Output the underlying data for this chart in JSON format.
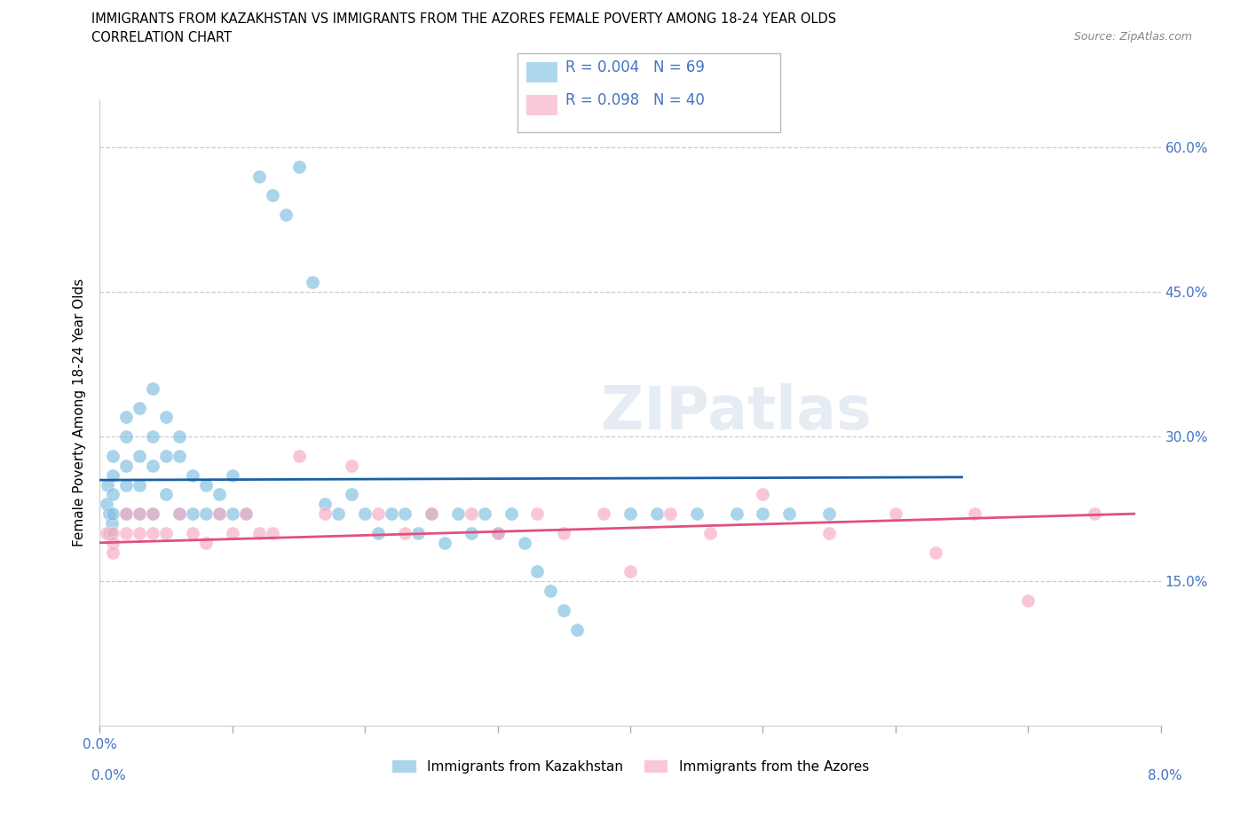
{
  "title_line1": "IMMIGRANTS FROM KAZAKHSTAN VS IMMIGRANTS FROM THE AZORES FEMALE POVERTY AMONG 18-24 YEAR OLDS",
  "title_line2": "CORRELATION CHART",
  "source": "Source: ZipAtlas.com",
  "ylabel": "Female Poverty Among 18-24 Year Olds",
  "xlim": [
    0.0,
    0.08
  ],
  "ylim": [
    0.0,
    0.65
  ],
  "xtick_positions": [
    0.0,
    0.01,
    0.02,
    0.03,
    0.04,
    0.05,
    0.06,
    0.07,
    0.08
  ],
  "xtick_labels_shown": {
    "0.0": "0.0%",
    "0.08": "8.0%"
  },
  "ytick_vals": [
    0.15,
    0.3,
    0.45,
    0.6
  ],
  "ytick_labels": [
    "15.0%",
    "30.0%",
    "45.0%",
    "60.0%"
  ],
  "kazakhstan_color": "#7bbde0",
  "azores_color": "#f7a8c0",
  "trend_kaz_color": "#1a5fa8",
  "trend_az_color": "#e05080",
  "watermark": "ZIPatlas",
  "legend_entries": [
    {
      "label": "R = 0.004   N = 69",
      "color": "#7bbde0"
    },
    {
      "label": "R = 0.098   N = 40",
      "color": "#f7a8c0"
    }
  ],
  "bottom_legend": [
    "Immigrants from Kazakhstan",
    "Immigrants from the Azores"
  ],
  "kaz_x": [
    0.0005,
    0.0006,
    0.0007,
    0.0008,
    0.0009,
    0.001,
    0.001,
    0.001,
    0.001,
    0.002,
    0.002,
    0.002,
    0.002,
    0.002,
    0.003,
    0.003,
    0.003,
    0.003,
    0.004,
    0.004,
    0.004,
    0.004,
    0.005,
    0.005,
    0.005,
    0.006,
    0.006,
    0.006,
    0.007,
    0.007,
    0.008,
    0.008,
    0.009,
    0.009,
    0.01,
    0.01,
    0.011,
    0.012,
    0.013,
    0.014,
    0.015,
    0.016,
    0.017,
    0.018,
    0.019,
    0.02,
    0.021,
    0.022,
    0.023,
    0.024,
    0.025,
    0.026,
    0.027,
    0.028,
    0.029,
    0.03,
    0.031,
    0.032,
    0.033,
    0.034,
    0.035,
    0.036,
    0.04,
    0.042,
    0.045,
    0.048,
    0.05,
    0.052,
    0.055
  ],
  "kaz_y": [
    0.23,
    0.25,
    0.22,
    0.2,
    0.21,
    0.26,
    0.24,
    0.28,
    0.22,
    0.3,
    0.27,
    0.25,
    0.32,
    0.22,
    0.33,
    0.28,
    0.25,
    0.22,
    0.35,
    0.3,
    0.27,
    0.22,
    0.32,
    0.28,
    0.24,
    0.3,
    0.28,
    0.22,
    0.26,
    0.22,
    0.25,
    0.22,
    0.24,
    0.22,
    0.26,
    0.22,
    0.22,
    0.57,
    0.55,
    0.53,
    0.58,
    0.46,
    0.23,
    0.22,
    0.24,
    0.22,
    0.2,
    0.22,
    0.22,
    0.2,
    0.22,
    0.19,
    0.22,
    0.2,
    0.22,
    0.2,
    0.22,
    0.19,
    0.16,
    0.14,
    0.12,
    0.1,
    0.22,
    0.22,
    0.22,
    0.22,
    0.22,
    0.22,
    0.22
  ],
  "az_x": [
    0.0005,
    0.001,
    0.001,
    0.001,
    0.002,
    0.002,
    0.003,
    0.003,
    0.004,
    0.004,
    0.005,
    0.006,
    0.007,
    0.008,
    0.009,
    0.01,
    0.011,
    0.012,
    0.013,
    0.015,
    0.017,
    0.019,
    0.021,
    0.023,
    0.025,
    0.028,
    0.03,
    0.033,
    0.035,
    0.038,
    0.04,
    0.043,
    0.046,
    0.05,
    0.055,
    0.06,
    0.063,
    0.066,
    0.07,
    0.075
  ],
  "az_y": [
    0.2,
    0.2,
    0.19,
    0.18,
    0.22,
    0.2,
    0.22,
    0.2,
    0.22,
    0.2,
    0.2,
    0.22,
    0.2,
    0.19,
    0.22,
    0.2,
    0.22,
    0.2,
    0.2,
    0.28,
    0.22,
    0.27,
    0.22,
    0.2,
    0.22,
    0.22,
    0.2,
    0.22,
    0.2,
    0.22,
    0.16,
    0.22,
    0.2,
    0.24,
    0.2,
    0.22,
    0.18,
    0.22,
    0.13,
    0.22
  ]
}
